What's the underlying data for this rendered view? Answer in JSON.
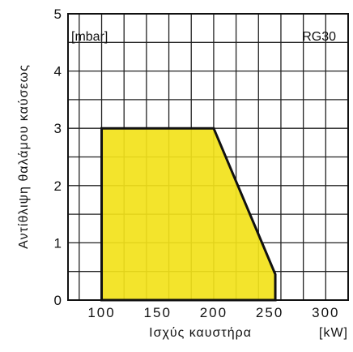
{
  "chart_data": {
    "type": "area",
    "title": "",
    "xlabel": "Ισχύς καυστήρα",
    "x_unit": "[kW]",
    "ylabel": "Αντίθλιψη θαλάμου καύσεως",
    "y_unit": "[mbar]",
    "model": "RG30",
    "xlim": [
      70,
      320
    ],
    "ylim": [
      0,
      5
    ],
    "x_ticks": [
      "100",
      "150",
      "200",
      "250",
      "300"
    ],
    "y_ticks": [
      "0",
      "1",
      "2",
      "3",
      "4",
      "5"
    ],
    "grid": true,
    "fill_color": "#f2e21a",
    "region": {
      "x": [
        100,
        100,
        200,
        255,
        255
      ],
      "y": [
        0,
        3,
        3,
        0.45,
        0
      ]
    }
  }
}
